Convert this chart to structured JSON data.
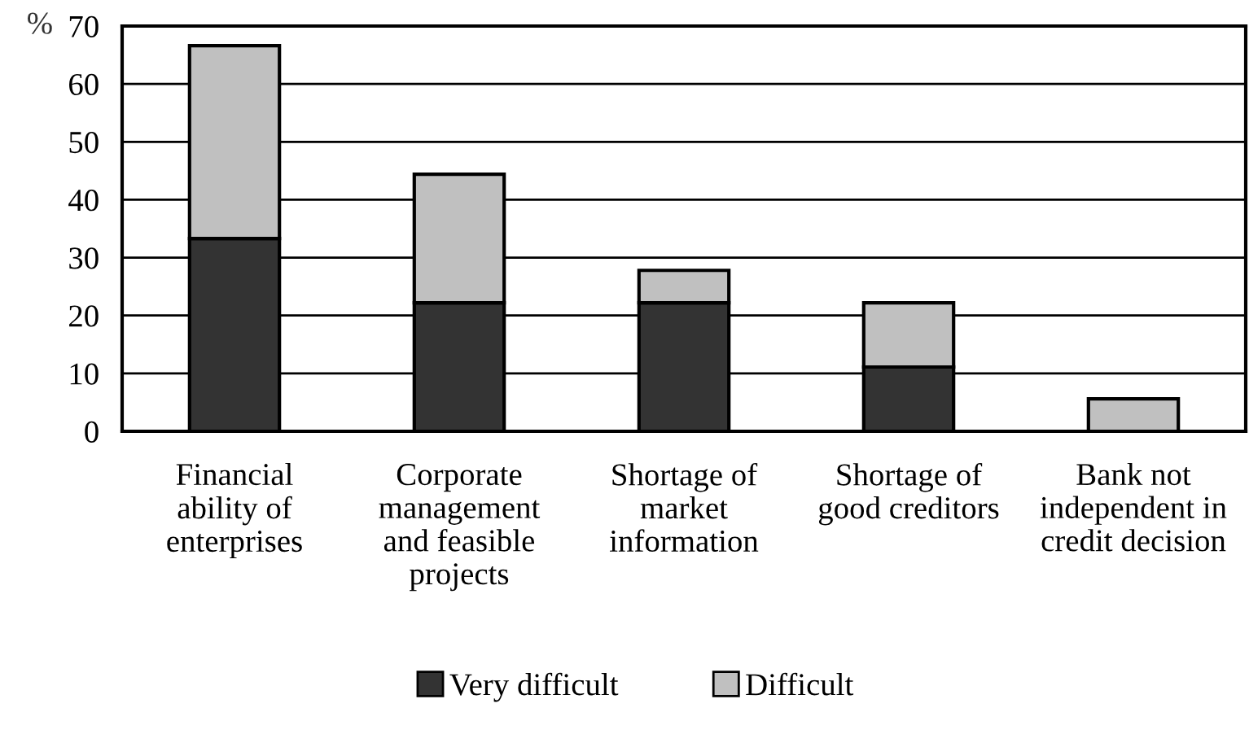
{
  "chart_data": {
    "type": "bar",
    "stacked": true,
    "ylabel": "%",
    "categories": [
      "Financial\nability of\nenterprises",
      "Corporate\nmanagement\nand feasible\nprojects",
      "Shortage of\nmarket\ninformation",
      "Shortage of\ngood creditors",
      "Bank not\nindependent in\ncredit decision"
    ],
    "series": [
      {
        "name": "Very difficult",
        "color": "#333333",
        "values": [
          33.3,
          22.2,
          22.2,
          11.1,
          0
        ]
      },
      {
        "name": "Difficult",
        "color": "#c0c0c0",
        "values": [
          33.3,
          22.2,
          5.6,
          11.1,
          5.6
        ]
      }
    ],
    "ylim": [
      0,
      70
    ],
    "yticks": [
      0,
      10,
      20,
      30,
      40,
      50,
      60,
      70
    ],
    "grid": "y",
    "legend": "bottom"
  }
}
